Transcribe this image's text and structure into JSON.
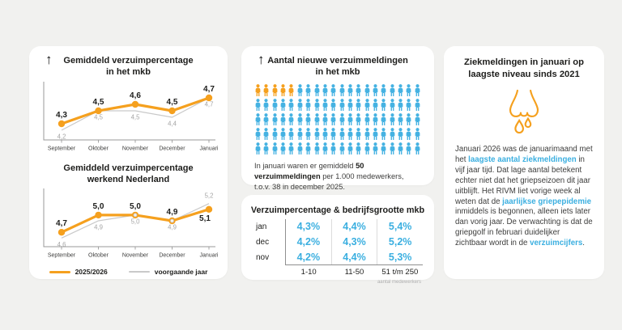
{
  "colors": {
    "background": "#f1f1ef",
    "card": "#ffffff",
    "orange": "#F5A01E",
    "blue_icon": "#45B2E2",
    "blue_text": "#3BAFE0",
    "gray_line": "#c9c9c9",
    "gray_label": "#a6a6a6",
    "dark_text": "#1d1d1b",
    "body_text": "#3d3d3c",
    "axis": "#9a9a9a"
  },
  "icons": {
    "up_arrow": "↑",
    "runny_nose": "runny-nose-icon",
    "person": "person-icon"
  },
  "legend": {
    "series1_label": "2025/2026",
    "series2_label": "voorgaande jaar"
  },
  "chart_data": [
    {
      "id": "chart-mkb",
      "type": "line",
      "title": "Gemiddeld verzuimpercentage in het mkb",
      "title_lines": [
        "Gemiddeld verzuimpercentage",
        "in het mkb"
      ],
      "categories": [
        "September",
        "Oktober",
        "November",
        "December",
        "Januari"
      ],
      "series": [
        {
          "name": "2025/2026",
          "color": "#F5A01E",
          "values": [
            4.3,
            4.5,
            4.6,
            4.5,
            4.7
          ],
          "labels": [
            "4,3",
            "4,5",
            "4,6",
            "4,5",
            "4,7"
          ],
          "label_side": [
            "above",
            "above",
            "above",
            "above",
            "above"
          ]
        },
        {
          "name": "voorgaande jaar",
          "color": "#c9c9c9",
          "values": [
            4.2,
            4.5,
            4.5,
            4.4,
            4.7
          ],
          "labels": [
            "4,2",
            "4,5",
            "4,5",
            "4,4",
            "4,7"
          ],
          "label_side": [
            "below",
            "below",
            "below",
            "below",
            "below"
          ]
        }
      ],
      "ylim": [
        4.05,
        4.85
      ],
      "overlap_marker_points": [],
      "grid": false,
      "legend_position": "shared-bottom"
    },
    {
      "id": "chart-nl",
      "type": "line",
      "title": "Gemiddeld verzuimpercentage werkend Nederland",
      "title_lines": [
        "Gemiddeld verzuimpercentage",
        "werkend Nederland"
      ],
      "categories": [
        "September",
        "Oktober",
        "November",
        "December",
        "Januari"
      ],
      "series": [
        {
          "name": "2025/2026",
          "color": "#F5A01E",
          "values": [
            4.7,
            5.0,
            5.0,
            4.9,
            5.1
          ],
          "labels": [
            "4,7",
            "5,0",
            "5,0",
            "4,9",
            "5,1"
          ],
          "label_side": [
            "above",
            "above",
            "above",
            "above",
            "below"
          ]
        },
        {
          "name": "voorgaande jaar",
          "color": "#c9c9c9",
          "values": [
            4.6,
            4.9,
            5.0,
            4.9,
            5.2
          ],
          "labels": [
            "4,6",
            "4,9",
            "5,0",
            "4,9",
            "5,2"
          ],
          "label_side": [
            "below",
            "below",
            "below",
            "below",
            "above"
          ]
        }
      ],
      "ylim": [
        4.45,
        5.35
      ],
      "overlap_marker_points": [
        2,
        3
      ],
      "grid": false,
      "legend_position": "shared-bottom"
    },
    {
      "id": "pictogram-meldingen",
      "type": "pictogram",
      "title": "Aantal nieuwe verzuimmeldingen in het mkb",
      "title_lines": [
        "Aantal nieuwe verzuimmeldingen",
        "in het mkb"
      ],
      "total_icons": 100,
      "highlighted_icons": 5,
      "icons_per_row": 20,
      "rows": 5,
      "highlight_color": "#F5A01E",
      "base_color": "#45B2E2",
      "caption_segments": [
        {
          "text": "In januari waren er gemiddeld ",
          "bold": false
        },
        {
          "text": "50 verzuimmeldingen",
          "bold": true
        },
        {
          "text": " per 1.000 medewerkers, t.o.v. 38 in december 2025.",
          "bold": false
        }
      ]
    },
    {
      "id": "table-bedrijfsgrootte",
      "type": "table",
      "title": "Verzuimpercentage & bedrijfsgrootte mkb",
      "row_labels": [
        "jan",
        "dec",
        "nov"
      ],
      "col_labels": [
        "1-10",
        "11-50",
        "51 t/m 250"
      ],
      "values": [
        [
          "4,3%",
          "4,4%",
          "5,4%"
        ],
        [
          "4,2%",
          "4,3%",
          "5,2%"
        ],
        [
          "4,2%",
          "4,4%",
          "5,3%"
        ]
      ],
      "footnote": "aantal medewerkers",
      "value_color": "#3BAFE0"
    }
  ],
  "right_panel": {
    "title_lines": [
      "Ziekmeldingen in januari op",
      "laagste niveau sinds 2021"
    ],
    "icon": "runny-nose-icon",
    "paragraph_segments": [
      {
        "text": "Januari 2026 was de januarimaand met het ",
        "style": "normal"
      },
      {
        "text": "laagste aantal ziekmeldingen",
        "style": "link"
      },
      {
        "text": " in vijf jaar tijd. Dat lage aantal betekent echter niet dat het griepseizoen dit jaar uitblijft. Het RIVM liet vorige week al weten dat de ",
        "style": "normal"
      },
      {
        "text": "jaarlijkse griepepidemie",
        "style": "link"
      },
      {
        "text": " inmiddels is begonnen, alleen iets later dan vorig jaar. De verwachting is dat de griepgolf in februari duidelijker zichtbaar wordt in de ",
        "style": "normal"
      },
      {
        "text": "verzuimcijfers",
        "style": "link"
      },
      {
        "text": ".",
        "style": "normal"
      }
    ]
  }
}
